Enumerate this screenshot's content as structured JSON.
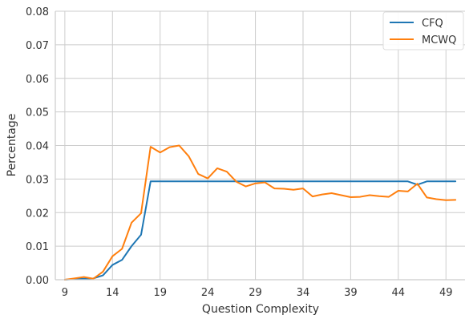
{
  "chart_data": {
    "type": "line",
    "title": "",
    "xlabel": "Question Complexity",
    "ylabel": "Percentage",
    "xlim": [
      8,
      51
    ],
    "ylim": [
      0,
      0.08
    ],
    "xticks": [
      9,
      14,
      19,
      24,
      29,
      34,
      39,
      44,
      49
    ],
    "xtick_labels": [
      "9",
      "14",
      "19",
      "24",
      "29",
      "34",
      "39",
      "44",
      "49"
    ],
    "yticks": [
      0,
      0.01,
      0.02,
      0.03,
      0.04,
      0.05,
      0.06,
      0.07,
      0.08
    ],
    "ytick_labels": [
      "0.00",
      "0.01",
      "0.02",
      "0.03",
      "0.04",
      "0.05",
      "0.06",
      "0.07",
      "0.08"
    ],
    "grid": true,
    "legend_position": "top-right",
    "series": [
      {
        "name": "CFQ",
        "color": "#1f77b4",
        "x": [
          9,
          10,
          11,
          12,
          13,
          14,
          15,
          16,
          17,
          18,
          19,
          20,
          21,
          22,
          23,
          24,
          25,
          26,
          27,
          28,
          29,
          30,
          31,
          32,
          33,
          34,
          35,
          36,
          37,
          38,
          39,
          40,
          41,
          42,
          43,
          44,
          45,
          46,
          47,
          48,
          49,
          50
        ],
        "y": [
          0.0,
          0.0002,
          0.0003,
          0.0004,
          0.0013,
          0.0044,
          0.0059,
          0.01,
          0.0134,
          0.0293,
          0.0293,
          0.0293,
          0.0293,
          0.0293,
          0.0293,
          0.0293,
          0.0293,
          0.0293,
          0.0293,
          0.0293,
          0.0293,
          0.0293,
          0.0293,
          0.0293,
          0.0293,
          0.0293,
          0.0293,
          0.0293,
          0.0293,
          0.0293,
          0.0293,
          0.0293,
          0.0293,
          0.0293,
          0.0293,
          0.0293,
          0.0293,
          0.0283,
          0.0293,
          0.0293,
          0.0293,
          0.0293
        ]
      },
      {
        "name": "MCWQ",
        "color": "#ff7f0e",
        "x": [
          9,
          10,
          11,
          12,
          13,
          14,
          15,
          16,
          17,
          18,
          19,
          20,
          21,
          22,
          23,
          24,
          25,
          26,
          27,
          28,
          29,
          30,
          31,
          32,
          33,
          34,
          35,
          36,
          37,
          38,
          39,
          40,
          41,
          42,
          43,
          44,
          45,
          46,
          47,
          48,
          49,
          50
        ],
        "y": [
          0.0,
          0.0004,
          0.0008,
          0.0003,
          0.0024,
          0.007,
          0.0092,
          0.017,
          0.0198,
          0.0396,
          0.0379,
          0.0395,
          0.04,
          0.0368,
          0.0315,
          0.0302,
          0.0332,
          0.0322,
          0.0292,
          0.0278,
          0.0287,
          0.029,
          0.0272,
          0.0271,
          0.0268,
          0.0272,
          0.0248,
          0.0254,
          0.0258,
          0.0252,
          0.0246,
          0.0247,
          0.0252,
          0.0249,
          0.0247,
          0.0265,
          0.0263,
          0.0286,
          0.0245,
          0.024,
          0.0237,
          0.0238
        ]
      }
    ]
  }
}
